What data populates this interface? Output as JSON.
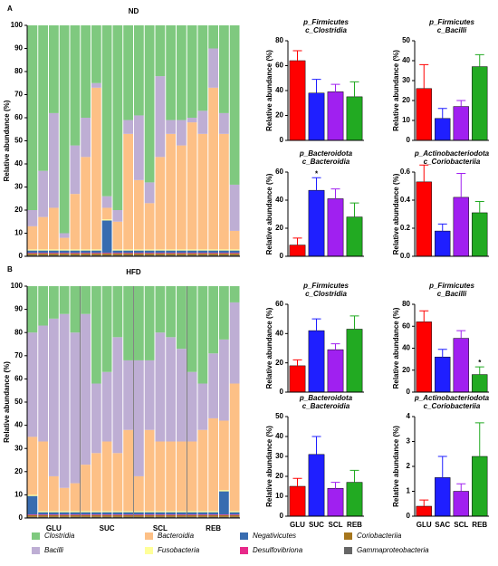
{
  "chart_data": [
    {
      "type": "stacked_bar",
      "panel": "A",
      "title": "ND",
      "ylabel": "Relative abundance (%)",
      "categories": [
        null,
        null,
        null,
        null,
        null,
        null,
        null,
        null,
        null,
        null,
        null,
        null,
        null,
        null,
        null,
        null,
        null,
        null,
        null,
        null
      ],
      "ylim": [
        0,
        100
      ],
      "yticks": [
        0,
        10,
        20,
        30,
        40,
        50,
        60,
        70,
        80,
        90,
        100
      ],
      "series": [
        {
          "name": "Clostridia",
          "color": "#7fc97f",
          "values": [
            80,
            63,
            38,
            90,
            52,
            40,
            25,
            74,
            80,
            41,
            39,
            68,
            22,
            41,
            41,
            40,
            37,
            10,
            38,
            69
          ]
        },
        {
          "name": "Bacilli",
          "color": "#beaed4",
          "values": [
            7,
            20,
            41,
            2,
            21,
            17,
            2,
            5,
            5,
            6,
            28,
            9,
            35,
            6,
            11,
            2,
            10,
            17,
            9,
            20
          ]
        },
        {
          "name": "Bacteroidia",
          "color": "#fdc086",
          "values": [
            10,
            14,
            18,
            5,
            24,
            40,
            70,
            5,
            12,
            50,
            30,
            20,
            40,
            50,
            45,
            55,
            50,
            70,
            50,
            8
          ]
        },
        {
          "name": "Fusobacteria",
          "color": "#ffff99",
          "values": [
            0.5,
            0.5,
            0.5,
            0.5,
            0.5,
            0.5,
            0.5,
            0.5,
            0.5,
            0.5,
            0.5,
            0.5,
            0.5,
            0.5,
            0.5,
            0.5,
            0.5,
            0.5,
            0.5,
            0.5
          ]
        },
        {
          "name": "Negativicutes",
          "color": "#386cb0",
          "values": [
            1,
            1,
            1,
            1,
            1,
            1,
            1,
            14,
            1,
            1,
            1,
            1,
            1,
            1,
            1,
            1,
            1,
            1,
            1,
            1
          ]
        },
        {
          "name": "Desulfovibriona",
          "color": "#e7298a",
          "values": [
            0.3,
            0.3,
            0.3,
            0.3,
            0.3,
            0.3,
            0.3,
            0.3,
            0.3,
            0.3,
            0.3,
            0.3,
            0.3,
            0.3,
            0.3,
            0.3,
            0.3,
            0.3,
            0.3,
            0.3
          ]
        },
        {
          "name": "Coriobacteriia",
          "color": "#a6761d",
          "values": [
            0.7,
            0.7,
            0.7,
            0.7,
            0.7,
            0.7,
            0.7,
            0.7,
            0.7,
            0.7,
            0.7,
            0.7,
            0.7,
            0.7,
            0.7,
            0.7,
            0.7,
            0.7,
            0.7,
            0.7
          ]
        },
        {
          "name": "Gammaproteobacteria",
          "color": "#666666",
          "values": [
            0.5,
            0.5,
            0.5,
            0.5,
            0.5,
            0.5,
            0.5,
            0.5,
            0.5,
            0.5,
            0.5,
            0.5,
            0.5,
            0.5,
            0.5,
            0.5,
            0.5,
            0.5,
            0.5,
            0.5
          ]
        }
      ]
    },
    {
      "type": "stacked_bar",
      "panel": "B",
      "title": "HFD",
      "ylabel": "Relative abundance (%)",
      "categories": [
        null,
        null,
        null,
        null,
        null,
        null,
        null,
        null,
        null,
        null,
        null,
        null,
        null,
        null,
        null,
        null,
        null,
        null,
        null,
        null
      ],
      "groups": [
        "GLU",
        "SUC",
        "SCL",
        "REB"
      ],
      "ylim": [
        0,
        100
      ],
      "yticks": [
        0,
        10,
        20,
        30,
        40,
        50,
        60,
        70,
        80,
        90,
        100
      ],
      "series": [
        {
          "name": "Clostridia",
          "color": "#7fc97f",
          "values": [
            20,
            17,
            14,
            12,
            20,
            12,
            42,
            37,
            22,
            32,
            32,
            32,
            20,
            22,
            27,
            37,
            42,
            29,
            23,
            7
          ]
        },
        {
          "name": "Bacilli",
          "color": "#beaed4",
          "values": [
            45,
            50,
            68,
            75,
            65,
            65,
            30,
            30,
            50,
            30,
            50,
            30,
            47,
            45,
            40,
            30,
            20,
            28,
            35,
            35
          ]
        },
        {
          "name": "Bacteroidia",
          "color": "#fdc086",
          "values": [
            25,
            30,
            15,
            10,
            12,
            20,
            25,
            30,
            25,
            35,
            15,
            35,
            30,
            30,
            30,
            30,
            35,
            40,
            30,
            55
          ]
        },
        {
          "name": "Fusobacteria",
          "color": "#ffff99",
          "values": [
            0.5,
            0.5,
            0.5,
            0.5,
            0.5,
            0.5,
            0.5,
            0.5,
            0.5,
            0.5,
            0.5,
            0.5,
            0.5,
            0.5,
            0.5,
            0.5,
            0.5,
            0.5,
            0.5,
            0.5
          ]
        },
        {
          "name": "Negativicutes",
          "color": "#386cb0",
          "values": [
            8,
            1,
            1,
            1,
            1,
            1,
            1,
            1,
            1,
            1,
            1,
            1,
            1,
            1,
            1,
            1,
            1,
            1,
            10,
            1
          ]
        },
        {
          "name": "Desulfovibriona",
          "color": "#e7298a",
          "values": [
            0.3,
            0.3,
            0.3,
            0.3,
            0.3,
            0.3,
            0.3,
            0.3,
            0.3,
            0.3,
            0.3,
            0.3,
            0.3,
            0.3,
            0.3,
            0.3,
            0.3,
            0.3,
            0.3,
            0.3
          ]
        },
        {
          "name": "Coriobacteriia",
          "color": "#a6761d",
          "values": [
            0.7,
            0.7,
            0.7,
            0.7,
            0.7,
            0.7,
            0.7,
            0.7,
            0.7,
            0.7,
            0.7,
            0.7,
            0.7,
            0.7,
            0.7,
            0.7,
            0.7,
            0.7,
            0.7,
            0.7
          ]
        },
        {
          "name": "Gammaproteobacteria",
          "color": "#666666",
          "values": [
            0.5,
            0.5,
            0.5,
            0.5,
            0.5,
            0.5,
            0.5,
            0.5,
            0.5,
            0.5,
            0.5,
            0.5,
            0.5,
            0.5,
            0.5,
            0.5,
            0.5,
            0.5,
            0.5,
            0.5
          ]
        }
      ]
    },
    {
      "type": "bar",
      "title": [
        "p_Firmicutes",
        "c_Clostridia"
      ],
      "ylabel": "Relative abundance (%)",
      "categories": [
        null,
        null,
        null,
        null
      ],
      "colors": [
        "#ff0000",
        "#1f1fff",
        "#a020f0",
        "#22aa22"
      ],
      "values": [
        64,
        38,
        39,
        35
      ],
      "errors": [
        8,
        11,
        6,
        12
      ],
      "ylim": [
        0,
        80
      ],
      "yticks": [
        0,
        20,
        40,
        60,
        80
      ]
    },
    {
      "type": "bar",
      "title": [
        "p_Firmicutes",
        "c_Bacilli"
      ],
      "ylabel": "Relative abundance (%)",
      "categories": [
        null,
        null,
        null,
        null
      ],
      "colors": [
        "#ff0000",
        "#1f1fff",
        "#a020f0",
        "#22aa22"
      ],
      "values": [
        26,
        11,
        17,
        37
      ],
      "errors": [
        12,
        5,
        3,
        6
      ],
      "ylim": [
        0,
        50
      ],
      "yticks": [
        0,
        10,
        20,
        30,
        40,
        50
      ]
    },
    {
      "type": "bar",
      "title": [
        "p_Bacteroidota",
        "c_Bacteroidia"
      ],
      "ylabel": "Relative abundance (%)",
      "categories": [
        null,
        null,
        null,
        null
      ],
      "colors": [
        "#ff0000",
        "#1f1fff",
        "#a020f0",
        "#22aa22"
      ],
      "values": [
        8,
        47,
        41,
        28
      ],
      "errors": [
        5,
        9,
        7,
        10
      ],
      "ylim": [
        0,
        60
      ],
      "yticks": [
        0,
        20,
        40,
        60
      ],
      "annotation": {
        "index": 1,
        "text": "*"
      }
    },
    {
      "type": "bar",
      "title": [
        "p_Actinobacteriodota",
        "c_Coriobacteriia"
      ],
      "ylabel": "Relative abundance (%)",
      "categories": [
        null,
        null,
        null,
        null
      ],
      "colors": [
        "#ff0000",
        "#1f1fff",
        "#a020f0",
        "#22aa22"
      ],
      "values": [
        0.53,
        0.18,
        0.42,
        0.31
      ],
      "errors": [
        0.12,
        0.05,
        0.17,
        0.08
      ],
      "ylim": [
        0,
        0.6
      ],
      "yticks": [
        {
          "value": 0,
          "label": "0.0"
        },
        0.2,
        0.4,
        0.6
      ]
    },
    {
      "type": "bar",
      "title": [
        "p_Firmicutes",
        "c_Clostridia"
      ],
      "ylabel": "Relative abundance (%)",
      "categories": [
        null,
        null,
        null,
        null
      ],
      "colors": [
        "#ff0000",
        "#1f1fff",
        "#a020f0",
        "#22aa22"
      ],
      "values": [
        18,
        42,
        29,
        43
      ],
      "errors": [
        4,
        8,
        4,
        9
      ],
      "ylim": [
        0,
        60
      ],
      "yticks": [
        0,
        20,
        40,
        60
      ]
    },
    {
      "type": "bar",
      "title": [
        "p_Firmicutes",
        "c_Bacilli"
      ],
      "ylabel": "Relative abundance (%)",
      "categories": [
        null,
        null,
        null,
        null
      ],
      "colors": [
        "#ff0000",
        "#1f1fff",
        "#a020f0",
        "#22aa22"
      ],
      "values": [
        64,
        32,
        49,
        16
      ],
      "errors": [
        10,
        7,
        7,
        7
      ],
      "ylim": [
        0,
        80
      ],
      "yticks": [
        0,
        20,
        40,
        60,
        80
      ],
      "annotation": {
        "index": 3,
        "text": "*"
      }
    },
    {
      "type": "bar",
      "title": [
        "p_Bacteroidota",
        "c_Bacteroidia"
      ],
      "ylabel": "Relative abundance (%)",
      "categories": [
        "GLU",
        "SUC",
        "SCL",
        "REB"
      ],
      "colors": [
        "#ff0000",
        "#1f1fff",
        "#a020f0",
        "#22aa22"
      ],
      "values": [
        15,
        31,
        14,
        17
      ],
      "errors": [
        4,
        9,
        3,
        6
      ],
      "ylim": [
        0,
        50
      ],
      "yticks": [
        0,
        10,
        20,
        30,
        40,
        50
      ]
    },
    {
      "type": "bar",
      "title": [
        "p_Actinobacteriodota",
        "c_Coriobacteriia"
      ],
      "ylabel": "Relative abundance (%)",
      "categories": [
        "GLU",
        "SAC",
        "SCL",
        "REB"
      ],
      "colors": [
        "#ff0000",
        "#1f1fff",
        "#a020f0",
        "#22aa22"
      ],
      "values": [
        0.4,
        1.55,
        1.0,
        2.4
      ],
      "errors": [
        0.25,
        0.85,
        0.3,
        1.35
      ],
      "ylim": [
        0,
        4
      ],
      "yticks": [
        0,
        1,
        2,
        3,
        4
      ]
    }
  ]
}
